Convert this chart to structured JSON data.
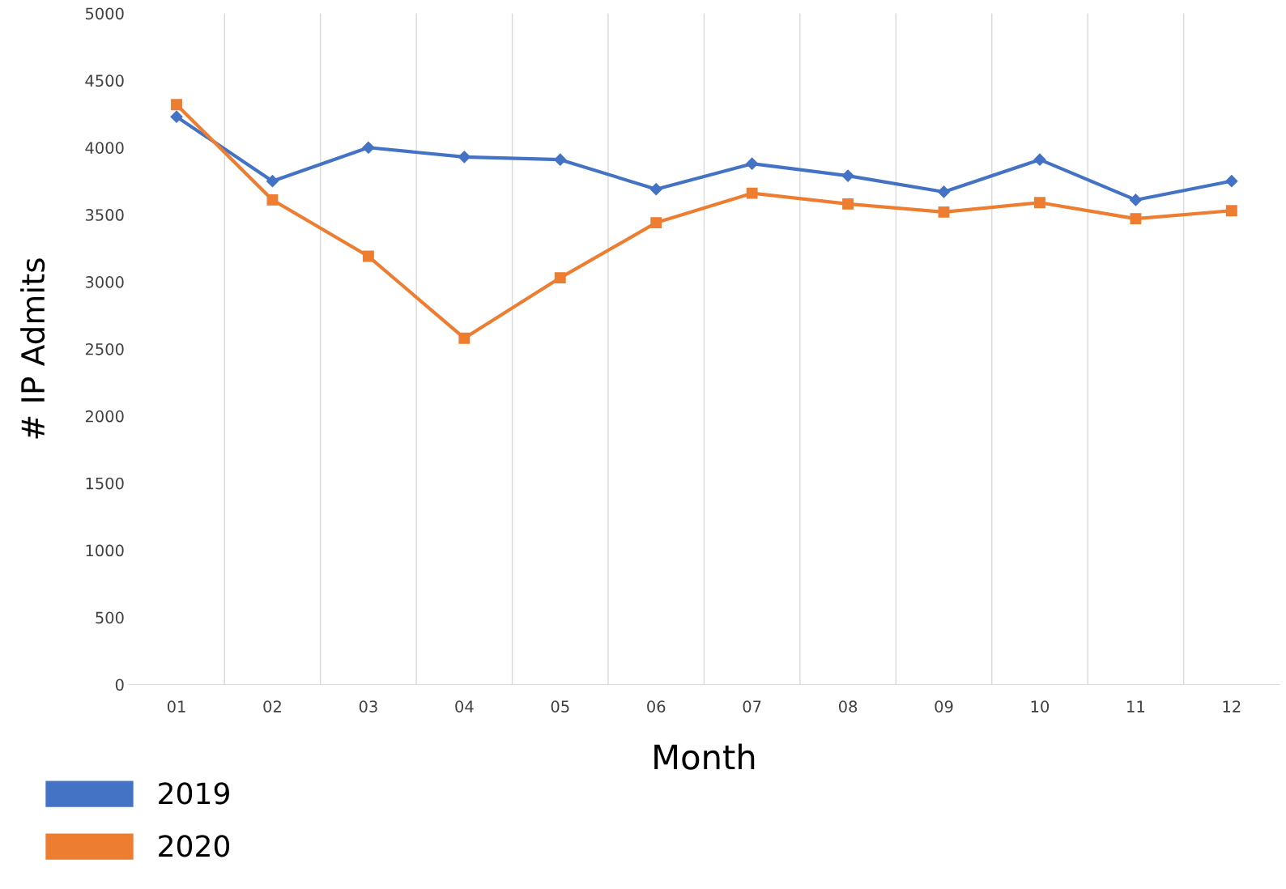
{
  "chart_data": {
    "type": "line",
    "xlabel": "Month",
    "ylabel": "# IP Admits",
    "categories": [
      "01",
      "02",
      "03",
      "04",
      "05",
      "06",
      "07",
      "08",
      "09",
      "10",
      "11",
      "12"
    ],
    "series": [
      {
        "name": "2019",
        "color": "#4472c4",
        "marker": "diamond",
        "values": [
          4230,
          3750,
          4000,
          3930,
          3910,
          3690,
          3880,
          3790,
          3670,
          3910,
          3610,
          3750
        ]
      },
      {
        "name": "2020",
        "color": "#ed7d31",
        "marker": "square",
        "values": [
          4320,
          3610,
          3190,
          2580,
          3030,
          3440,
          3660,
          3580,
          3520,
          3590,
          3470,
          3530
        ]
      }
    ],
    "ylim": [
      0,
      5000
    ],
    "yticks": [
      0,
      500,
      1000,
      1500,
      2000,
      2500,
      3000,
      3500,
      4000,
      4500,
      5000
    ],
    "grid": "x",
    "legend": "bottom left",
    "line_style": "solid"
  }
}
